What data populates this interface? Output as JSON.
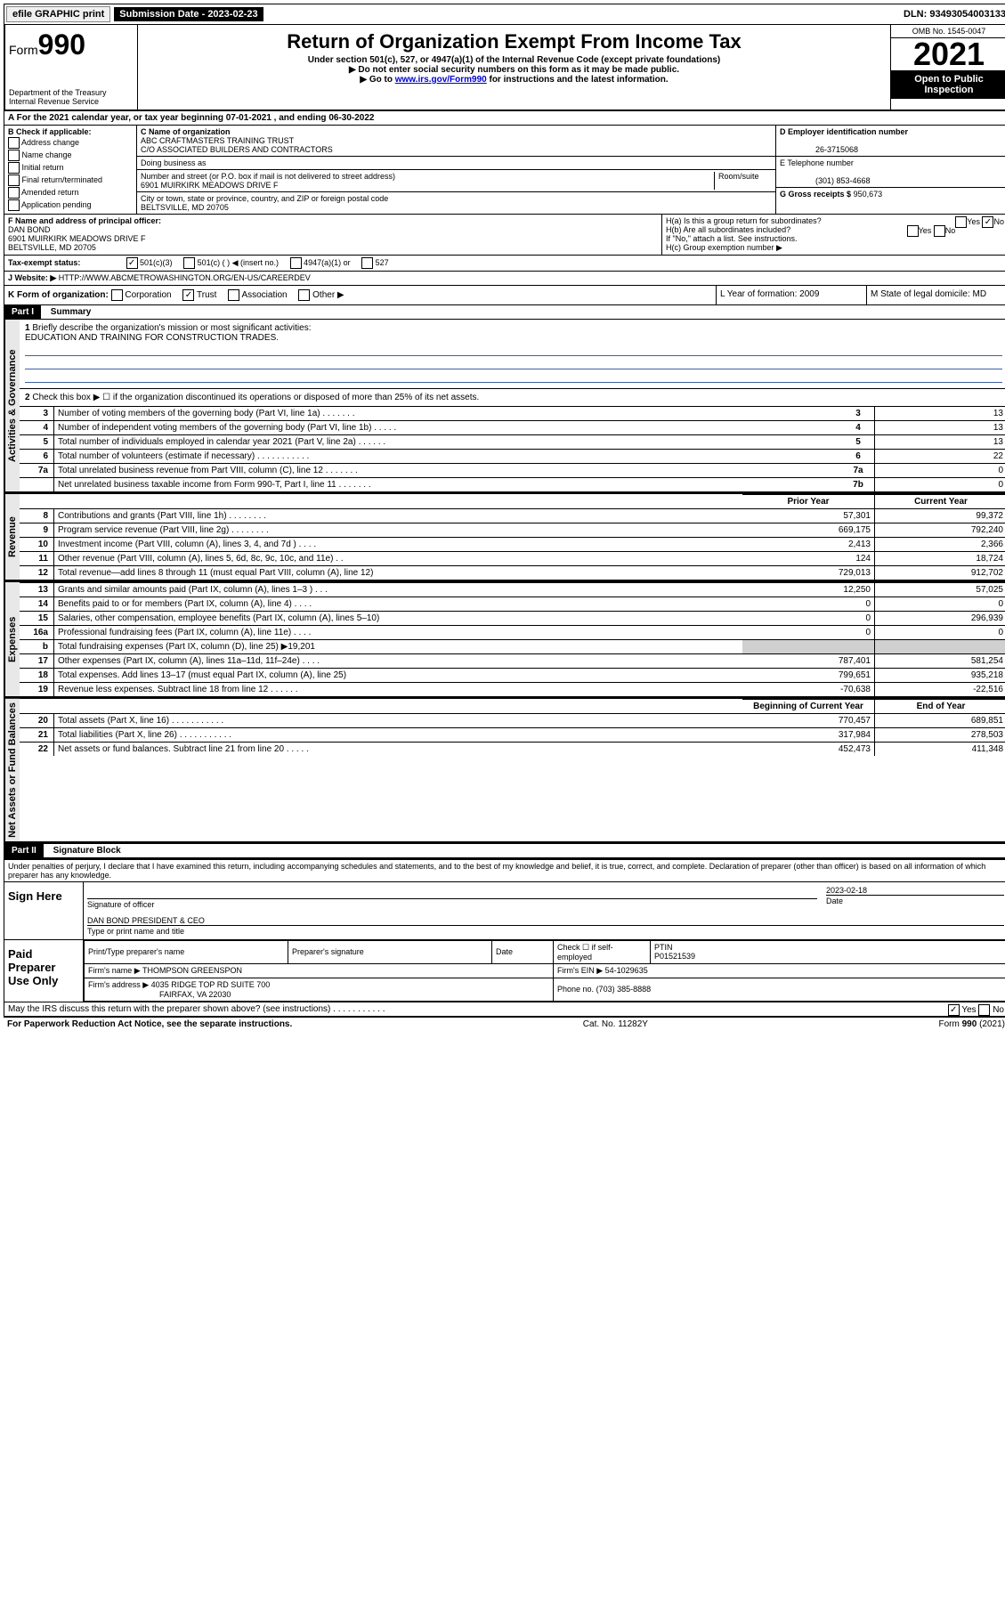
{
  "top": {
    "efile": "efile GRAPHIC print",
    "sub_label": "Submission Date - 2023-02-23",
    "dln": "DLN: 93493054003133"
  },
  "header": {
    "form_prefix": "Form",
    "form_num": "990",
    "dept": "Department of the Treasury",
    "irs": "Internal Revenue Service",
    "title": "Return of Organization Exempt From Income Tax",
    "sub1": "Under section 501(c), 527, or 4947(a)(1) of the Internal Revenue Code (except private foundations)",
    "sub2": "▶ Do not enter social security numbers on this form as it may be made public.",
    "sub3_pre": "▶ Go to ",
    "sub3_link": "www.irs.gov/Form990",
    "sub3_post": " for instructions and the latest information.",
    "omb": "OMB No. 1545-0047",
    "year": "2021",
    "open": "Open to Public Inspection"
  },
  "a": {
    "text": "A For the 2021 calendar year, or tax year beginning 07-01-2021   , and ending 06-30-2022"
  },
  "b": {
    "title": "B Check if applicable:",
    "opts": [
      "Address change",
      "Name change",
      "Initial return",
      "Final return/terminated",
      "Amended return",
      "Application pending"
    ]
  },
  "c": {
    "label": "C Name of organization",
    "name": "ABC CRAFTMASTERS TRAINING TRUST",
    "co": "C/O ASSOCIATED BUILDERS AND CONTRACTORS",
    "dba_label": "Doing business as",
    "addr_label": "Number and street (or P.O. box if mail is not delivered to street address)",
    "room_label": "Room/suite",
    "addr": "6901 MUIRKIRK MEADOWS DRIVE F",
    "city_label": "City or town, state or province, country, and ZIP or foreign postal code",
    "city": "BELTSVILLE, MD  20705"
  },
  "d": {
    "label": "D Employer identification number",
    "ein": "26-3715068"
  },
  "e": {
    "label": "E Telephone number",
    "phone": "(301) 853-4668"
  },
  "g": {
    "label": "G Gross receipts $",
    "val": "950,673"
  },
  "f": {
    "label": "F Name and address of principal officer:",
    "name": "DAN BOND",
    "addr1": "6901 MUIRKIRK MEADOWS DRIVE F",
    "addr2": "BELTSVILLE, MD  20705"
  },
  "h": {
    "ha": "H(a)  Is this a group return for subordinates?",
    "hb": "H(b)  Are all subordinates included?",
    "hb_note": "If \"No,\" attach a list. See instructions.",
    "hc": "H(c)  Group exemption number ▶",
    "yes": "Yes",
    "no": "No"
  },
  "i": {
    "label": "Tax-exempt status:",
    "o1": "501(c)(3)",
    "o2": "501(c) (  ) ◀ (insert no.)",
    "o3": "4947(a)(1) or",
    "o4": "527"
  },
  "j": {
    "label": "J Website: ▶",
    "url": "HTTP://WWW.ABCMETROWASHINGTON.ORG/EN-US/CAREERDEV"
  },
  "k": {
    "label": "K Form of organization:",
    "opts": [
      "Corporation",
      "Trust",
      "Association",
      "Other ▶"
    ]
  },
  "l": {
    "label": "L Year of formation: 2009"
  },
  "m": {
    "label": "M State of legal domicile: MD"
  },
  "part1": {
    "label": "Part I",
    "title": "Summary",
    "vtab1": "Activities & Governance",
    "vtab2": "Revenue",
    "vtab3": "Expenses",
    "vtab4": "Net Assets or Fund Balances",
    "l1": "Briefly describe the organization's mission or most significant activities:",
    "mission": "EDUCATION AND TRAINING FOR CONSTRUCTION TRADES.",
    "l2": "Check this box ▶ ☐  if the organization discontinued its operations or disposed of more than 25% of its net assets.",
    "rows_gov": [
      {
        "n": "3",
        "d": "Number of voting members of the governing body (Part VI, line 1a)   .    .    .    .    .    .    .",
        "box": "3",
        "v": "13"
      },
      {
        "n": "4",
        "d": "Number of independent voting members of the governing body (Part VI, line 1b)   .    .    .    .    .",
        "box": "4",
        "v": "13"
      },
      {
        "n": "5",
        "d": "Total number of individuals employed in calendar year 2021 (Part V, line 2a)   .    .    .    .    .    .",
        "box": "5",
        "v": "13"
      },
      {
        "n": "6",
        "d": "Total number of volunteers (estimate if necessary)   .    .    .    .    .    .    .    .    .    .    .",
        "box": "6",
        "v": "22"
      },
      {
        "n": "7a",
        "d": "Total unrelated business revenue from Part VIII, column (C), line 12   .    .    .    .    .    .    .",
        "box": "7a",
        "v": "0"
      },
      {
        "n": "",
        "d": "Net unrelated business taxable income from Form 990-T, Part I, line 11   .    .    .    .    .    .    .",
        "box": "7b",
        "v": "0"
      }
    ],
    "hdr_prior": "Prior Year",
    "hdr_curr": "Current Year",
    "rows_rev": [
      {
        "n": "8",
        "d": "Contributions and grants (Part VIII, line 1h)   .    .    .    .    .    .    .    .",
        "p": "57,301",
        "c": "99,372"
      },
      {
        "n": "9",
        "d": "Program service revenue (Part VIII, line 2g)   .    .    .    .    .    .    .    .",
        "p": "669,175",
        "c": "792,240"
      },
      {
        "n": "10",
        "d": "Investment income (Part VIII, column (A), lines 3, 4, and 7d )   .    .    .    .",
        "p": "2,413",
        "c": "2,366"
      },
      {
        "n": "11",
        "d": "Other revenue (Part VIII, column (A), lines 5, 6d, 8c, 9c, 10c, and 11e)   .    .",
        "p": "124",
        "c": "18,724"
      },
      {
        "n": "12",
        "d": "Total revenue—add lines 8 through 11 (must equal Part VIII, column (A), line 12)",
        "p": "729,013",
        "c": "912,702"
      }
    ],
    "rows_exp": [
      {
        "n": "13",
        "d": "Grants and similar amounts paid (Part IX, column (A), lines 1–3 )   .    .    .",
        "p": "12,250",
        "c": "57,025"
      },
      {
        "n": "14",
        "d": "Benefits paid to or for members (Part IX, column (A), line 4)   .    .    .    .",
        "p": "0",
        "c": "0"
      },
      {
        "n": "15",
        "d": "Salaries, other compensation, employee benefits (Part IX, column (A), lines 5–10)",
        "p": "0",
        "c": "296,939"
      },
      {
        "n": "16a",
        "d": "Professional fundraising fees (Part IX, column (A), line 11e)   .    .    .    .",
        "p": "0",
        "c": "0"
      },
      {
        "n": "b",
        "d": "Total fundraising expenses (Part IX, column (D), line 25) ▶19,201",
        "p": "",
        "c": "",
        "grey": true
      },
      {
        "n": "17",
        "d": "Other expenses (Part IX, column (A), lines 11a–11d, 11f–24e)   .    .    .    .",
        "p": "787,401",
        "c": "581,254"
      },
      {
        "n": "18",
        "d": "Total expenses. Add lines 13–17 (must equal Part IX, column (A), line 25)",
        "p": "799,651",
        "c": "935,218"
      },
      {
        "n": "19",
        "d": "Revenue less expenses. Subtract line 18 from line 12   .    .    .    .    .    .",
        "p": "-70,638",
        "c": "-22,516"
      }
    ],
    "hdr_begin": "Beginning of Current Year",
    "hdr_end": "End of Year",
    "rows_net": [
      {
        "n": "20",
        "d": "Total assets (Part X, line 16)   .    .    .    .    .    .    .    .    .    .    .",
        "p": "770,457",
        "c": "689,851"
      },
      {
        "n": "21",
        "d": "Total liabilities (Part X, line 26)   .    .    .    .    .    .    .    .    .    .    .",
        "p": "317,984",
        "c": "278,503"
      },
      {
        "n": "22",
        "d": "Net assets or fund balances. Subtract line 21 from line 20   .    .    .    .    .",
        "p": "452,473",
        "c": "411,348"
      }
    ]
  },
  "part2": {
    "label": "Part II",
    "title": "Signature Block",
    "intro": "Under penalties of perjury, I declare that I have examined this return, including accompanying schedules and statements, and to the best of my knowledge and belief, it is true, correct, and complete. Declaration of preparer (other than officer) is based on all information of which preparer has any knowledge.",
    "sign_here": "Sign Here",
    "sig_officer": "Signature of officer",
    "date": "Date",
    "sig_date": "2023-02-18",
    "name_title": "DAN BOND  PRESIDENT & CEO",
    "type_name": "Type or print name and title",
    "paid": "Paid Preparer Use Only",
    "pt_name": "Print/Type preparer's name",
    "pt_sig": "Preparer's signature",
    "pt_date": "Date",
    "pt_check": "Check ☐ if self-employed",
    "ptin_label": "PTIN",
    "ptin": "P01521539",
    "firm_name_label": "Firm's name    ▶",
    "firm_name": "THOMPSON GREENSPON",
    "firm_ein_label": "Firm's EIN ▶",
    "firm_ein": "54-1029635",
    "firm_addr_label": "Firm's address ▶",
    "firm_addr1": "4035 RIDGE TOP RD SUITE 700",
    "firm_addr2": "FAIRFAX, VA  22030",
    "firm_phone_label": "Phone no.",
    "firm_phone": "(703) 385-8888",
    "may_irs": "May the IRS discuss this return with the preparer shown above? (see instructions)   .    .    .    .    .    .    .    .    .    .    ."
  },
  "footer": {
    "left": "For Paperwork Reduction Act Notice, see the separate instructions.",
    "mid": "Cat. No. 11282Y",
    "right": "Form 990 (2021)"
  }
}
